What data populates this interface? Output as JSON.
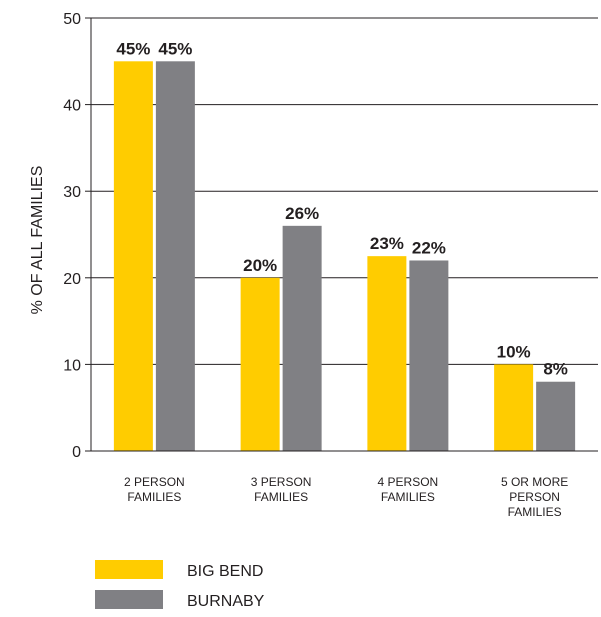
{
  "chart_data": {
    "type": "bar",
    "ylabel": "% OF ALL FAMILIES",
    "ylim": [
      0,
      50
    ],
    "yticks": [
      0,
      10,
      20,
      30,
      40,
      50
    ],
    "grid": true,
    "legend_position": "bottom-left",
    "categories": [
      [
        "2 PERSON",
        "FAMILIES"
      ],
      [
        "3 PERSON",
        "FAMILIES"
      ],
      [
        "4 PERSON",
        "FAMILIES"
      ],
      [
        "5 OR MORE",
        "PERSON",
        "FAMILIES"
      ]
    ],
    "series": [
      {
        "name": "BIG BEND",
        "color": "#ffcc00",
        "values": [
          45,
          20,
          22.5,
          10
        ],
        "labels": [
          "45%",
          "20%",
          "23%",
          "10%"
        ]
      },
      {
        "name": "BURNABY",
        "color": "#808084",
        "values": [
          45,
          26,
          22,
          8
        ],
        "labels": [
          "45%",
          "26%",
          "22%",
          "8%"
        ]
      }
    ]
  }
}
